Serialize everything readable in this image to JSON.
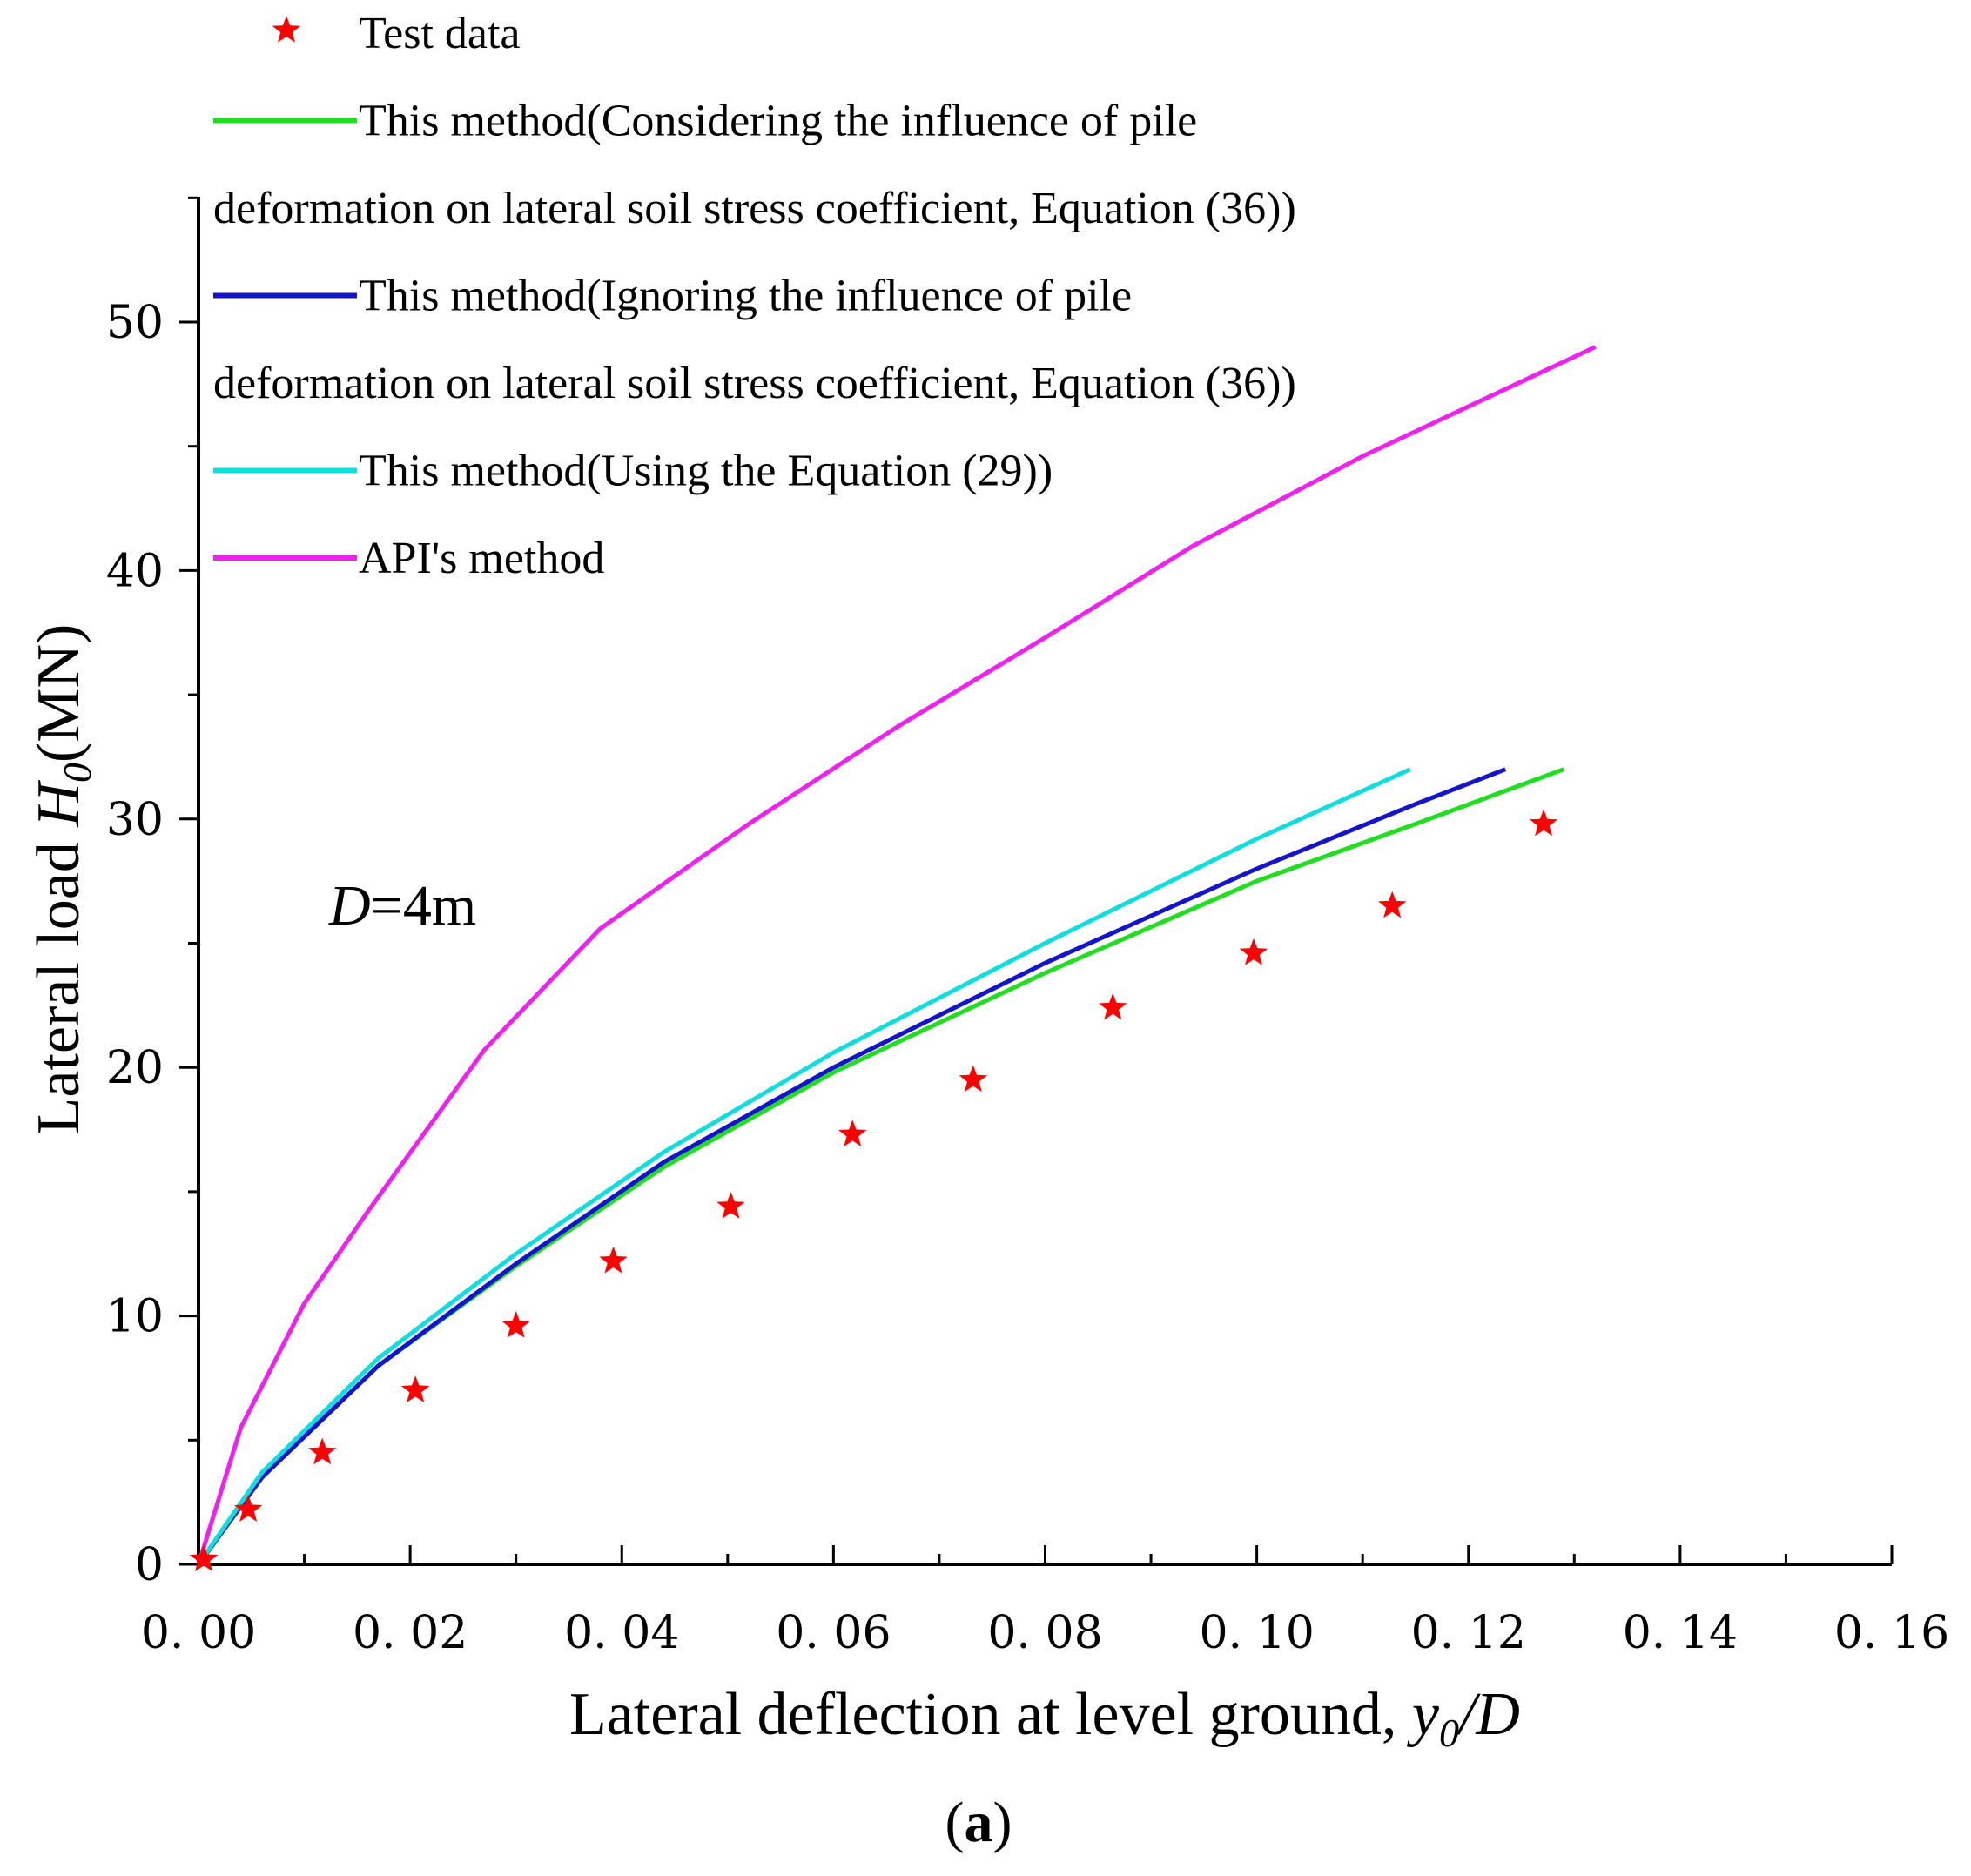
{
  "chart_data": {
    "type": "line",
    "title": "",
    "caption": "(a)",
    "caption_bold": "a",
    "annotation": {
      "italic": "D",
      "rest": "=4m"
    },
    "xlabel": {
      "prefix": "Lateral deflection at level ground, ",
      "var": "y",
      "sub": "0",
      "suffix": "/D"
    },
    "ylabel": {
      "prefix": "Lateral load ",
      "var": "H",
      "sub": "0",
      "suffix": "(MN)"
    },
    "xlim": [
      0,
      0.16
    ],
    "ylim": [
      0,
      55
    ],
    "x_ticks": [
      0,
      0.02,
      0.04,
      0.06,
      0.08,
      0.1,
      0.12,
      0.14,
      0.16
    ],
    "x_tick_labels": [
      "0. 00",
      "0. 02",
      "0. 04",
      "0. 06",
      "0. 08",
      "0. 10",
      "0. 12",
      "0. 14",
      "0. 16"
    ],
    "y_ticks": [
      0,
      10,
      20,
      30,
      40,
      50
    ],
    "y_tick_labels": [
      "0",
      "10",
      "20",
      "30",
      "40",
      "50"
    ],
    "grid": false,
    "legend_position": "top-left",
    "series": [
      {
        "name": "Test data",
        "legend_lines": [
          "Test data"
        ],
        "kind": "scatter",
        "color": "#ff0000",
        "x": [
          0.0005,
          0.0047,
          0.0117,
          0.0205,
          0.03,
          0.0392,
          0.0503,
          0.0618,
          0.0732,
          0.0864,
          0.0997,
          0.1128,
          0.1271
        ],
        "y": [
          0.2,
          2.2,
          4.5,
          7.0,
          9.6,
          12.2,
          14.4,
          17.3,
          19.5,
          22.4,
          24.6,
          26.5,
          29.8
        ]
      },
      {
        "name": "This method(Considering the influence of pile deformation on lateral soil stress coefficient, Equation (36))",
        "legend_lines": [
          "This method(Considering the influence of pile",
          "deformation on lateral soil stress coefficient, Equation (36))"
        ],
        "kind": "line",
        "color": "#22dd22",
        "x": [
          0,
          0.006,
          0.017,
          0.03,
          0.044,
          0.06,
          0.08,
          0.1,
          0.115,
          0.129
        ],
        "y": [
          0,
          3.5,
          8.0,
          12.0,
          16.0,
          19.8,
          23.8,
          27.5,
          29.8,
          32.0
        ]
      },
      {
        "name": "This method(Ignoring the influence of pile deformation on lateral soil stress coefficient, Equation (36))",
        "legend_lines": [
          "This method(Ignoring the influence of pile",
          "deformation on lateral soil stress coefficient, Equation (36))"
        ],
        "kind": "line",
        "color": "#1414cc",
        "x": [
          0,
          0.006,
          0.017,
          0.03,
          0.044,
          0.06,
          0.08,
          0.1,
          0.115,
          0.1235
        ],
        "y": [
          0,
          3.5,
          8.0,
          12.1,
          16.2,
          20.0,
          24.2,
          28.0,
          30.6,
          32.0
        ]
      },
      {
        "name": "This method(Using the Equation (29))",
        "legend_lines": [
          "This method(Using the Equation (29))"
        ],
        "kind": "line",
        "color": "#11dddd",
        "x": [
          0,
          0.006,
          0.017,
          0.03,
          0.044,
          0.06,
          0.08,
          0.1,
          0.1145
        ],
        "y": [
          0,
          3.7,
          8.3,
          12.5,
          16.6,
          20.6,
          25.0,
          29.2,
          32.0
        ]
      },
      {
        "name": "API's method",
        "legend_lines": [
          "API's method"
        ],
        "kind": "line",
        "color": "#ee22ee",
        "x": [
          0,
          0.004,
          0.01,
          0.016,
          0.027,
          0.038,
          0.052,
          0.066,
          0.08,
          0.094,
          0.11,
          0.132
        ],
        "y": [
          0,
          5.5,
          10.5,
          14.2,
          20.7,
          25.6,
          29.8,
          33.7,
          37.3,
          41.0,
          44.6,
          49.0
        ]
      }
    ]
  }
}
